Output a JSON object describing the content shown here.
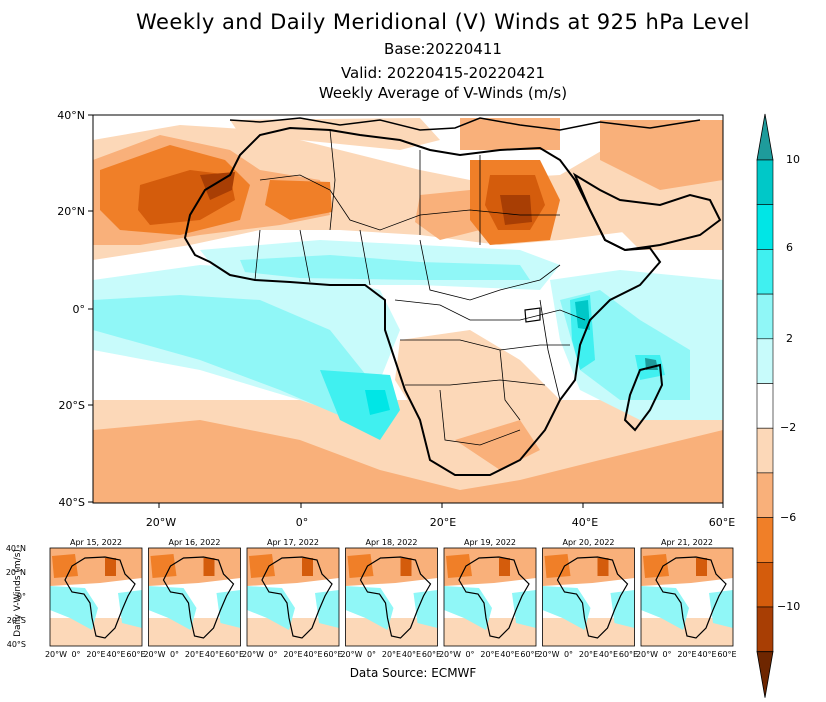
{
  "title": "Weekly and Daily Meridional (V) Winds at 925 hPa Level",
  "base": "Base:20220411",
  "valid": "Valid: 20220415-20220421",
  "subtitle": "Weekly Average of V-Winds (m/s)",
  "map": {
    "lat_ticks": [
      "40°N",
      "20°N",
      "0°",
      "20°S",
      "40°S"
    ],
    "lon_ticks": [
      "20°W",
      "0°",
      "20°E",
      "40°E",
      "60°E"
    ]
  },
  "colorbar": {
    "labels": [
      "10",
      "6",
      "2",
      "−2",
      "−6",
      "−10"
    ],
    "colors": [
      "#1e9b9b",
      "#00c8c8",
      "#00e6e6",
      "#40f0f0",
      "#90f7f7",
      "#c8fbfb",
      "#ffffff",
      "#fcd8b8",
      "#f9b07a",
      "#f07f28",
      "#d45c0c",
      "#a83e04",
      "#6e2600"
    ]
  },
  "daily": {
    "ylabel": "Daily V-Winds (m/s)",
    "lat_ticks": [
      "40°N",
      "20°N",
      "0°",
      "20°S",
      "40°S"
    ],
    "lon_ticks": [
      "20°W",
      "0°",
      "20°E",
      "40°E",
      "60°E"
    ],
    "panels": [
      {
        "date": "Apr 15, 2022"
      },
      {
        "date": "Apr 16, 2022"
      },
      {
        "date": "Apr 17, 2022"
      },
      {
        "date": "Apr 18, 2022"
      },
      {
        "date": "Apr 19, 2022"
      },
      {
        "date": "Apr 20, 2022"
      },
      {
        "date": "Apr 21, 2022"
      }
    ]
  },
  "source": "Data Source: ECMWF"
}
